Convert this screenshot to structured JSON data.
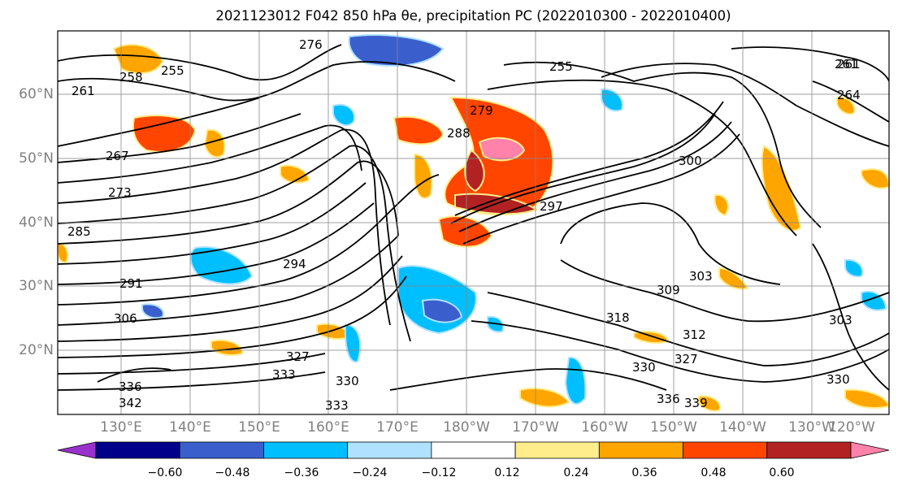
{
  "title": "2021123012 F042 850 hPa θe, precipitation PC (2022010300 - 2022010400)",
  "map": {
    "lat_labels": [
      "60°N",
      "50°N",
      "40°N",
      "30°N",
      "20°N"
    ],
    "lon_labels": [
      "130°E",
      "140°E",
      "150°E",
      "160°E",
      "170°E",
      "180°W",
      "170°W",
      "160°W",
      "150°W",
      "140°W",
      "130°W",
      "120°W"
    ],
    "contour_labels": [
      "261",
      "258",
      "255",
      "261",
      "267",
      "273",
      "285",
      "291",
      "306",
      "336",
      "342",
      "279",
      "276",
      "288",
      "294",
      "300",
      "303",
      "309",
      "312",
      "318",
      "330",
      "327",
      "333",
      "330",
      "333",
      "336",
      "339",
      "327",
      "330",
      "303",
      "261",
      "264",
      "255",
      "297"
    ]
  },
  "colorbar": {
    "ticks": [
      "−0.60",
      "−0.48",
      "−0.36",
      "−0.24",
      "−0.12",
      "0.12",
      "0.24",
      "0.36",
      "0.48",
      "0.60"
    ],
    "colors": [
      "#9932CC",
      "#00008B",
      "#3A5FCD",
      "#00BFFF",
      "#B0E2FF",
      "#FFFFFF",
      "#FFEC8B",
      "#FFA500",
      "#FF4500",
      "#B22222",
      "#FF82AB"
    ]
  }
}
